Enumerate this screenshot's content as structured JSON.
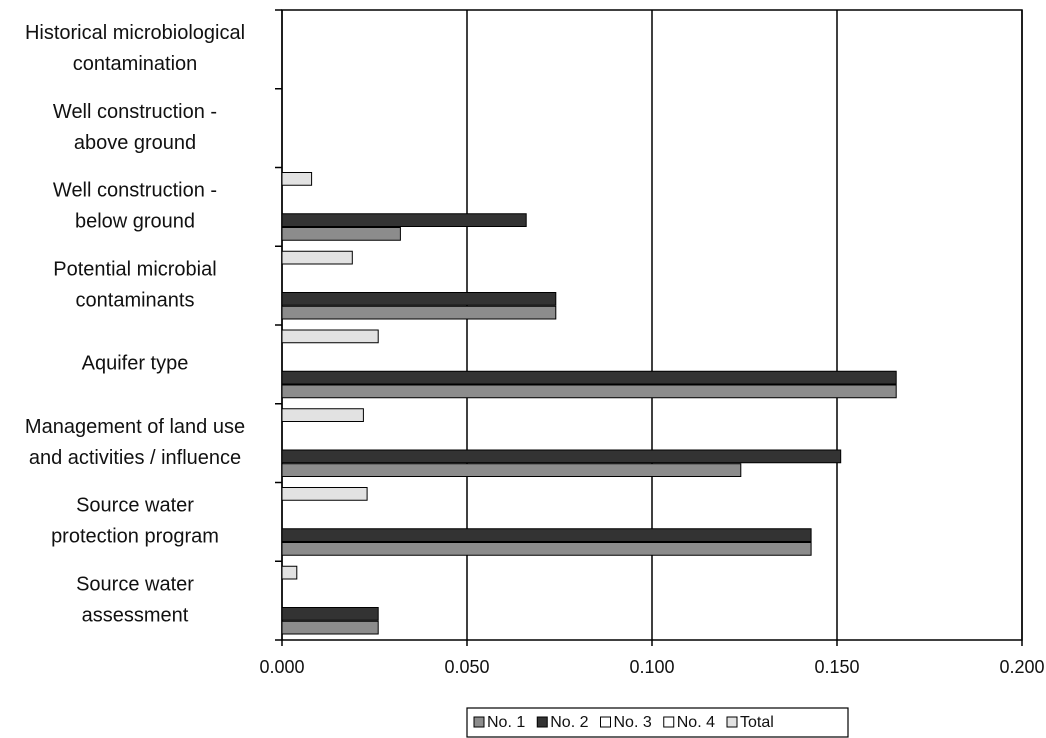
{
  "chart_data": {
    "type": "hbar",
    "categories": [
      [
        "Historical microbiological",
        "contamination"
      ],
      [
        "Well construction -",
        "above ground"
      ],
      [
        "Well construction -",
        "below ground"
      ],
      [
        "Potential microbial",
        "contaminants"
      ],
      [
        "Aquifer type"
      ],
      [
        "Management of land use",
        "and activities / influence"
      ],
      [
        "Source water",
        "protection program"
      ],
      [
        "Source water",
        "assessment"
      ]
    ],
    "series": [
      {
        "name": "No. 1",
        "color": "#8c8c8c",
        "values": [
          0,
          0,
          0.032,
          0.074,
          0.166,
          0.124,
          0.143,
          0.026
        ]
      },
      {
        "name": "No. 2",
        "color": "#333333",
        "values": [
          0,
          0,
          0.066,
          0.074,
          0.166,
          0.151,
          0.143,
          0.026
        ]
      },
      {
        "name": "No. 3",
        "color": "#ffffff",
        "values": [
          0,
          0,
          0,
          0,
          0,
          0,
          0,
          0
        ]
      },
      {
        "name": "No. 4",
        "color": "#ffffff",
        "values": [
          0,
          0,
          0,
          0,
          0,
          0,
          0,
          0
        ]
      },
      {
        "name": "Total",
        "color": "#e2e2e2",
        "values": [
          0,
          0,
          0.008,
          0.019,
          0.026,
          0.022,
          0.023,
          0.004
        ]
      }
    ],
    "xlim": [
      0,
      0.2
    ],
    "xticks": [
      {
        "value": 0,
        "label": "0.000"
      },
      {
        "value": 0.05,
        "label": "0.050"
      },
      {
        "value": 0.1,
        "label": "0.100"
      },
      {
        "value": 0.15,
        "label": "0.150"
      },
      {
        "value": 0.2,
        "label": "0.200"
      }
    ],
    "grid": true,
    "legend": "bottom"
  }
}
